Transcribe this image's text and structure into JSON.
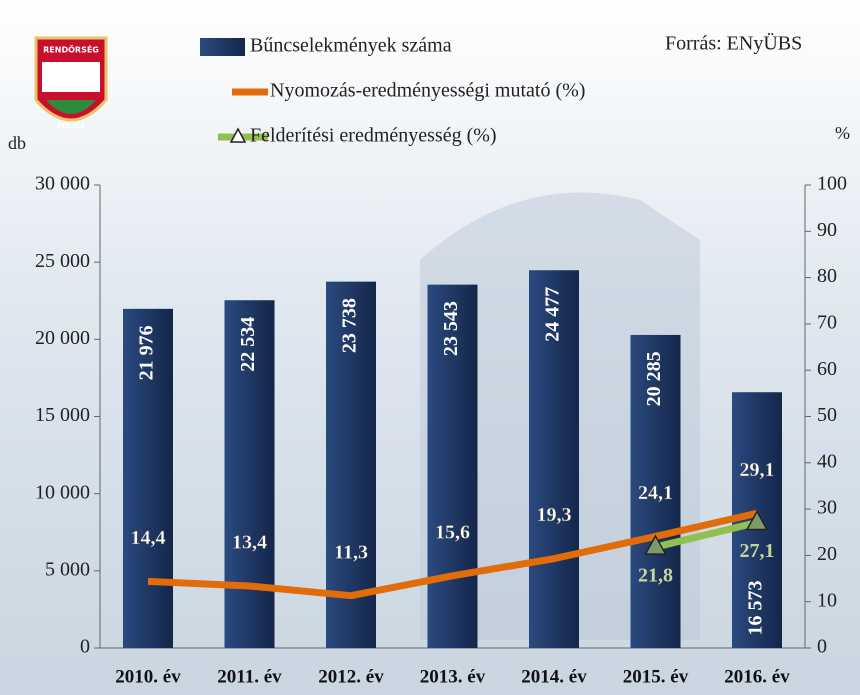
{
  "chart_data": {
    "type": "bar",
    "source": "Forrás: ENyÜBS",
    "logo_texts": [
      "RENDŐRSÉG",
      "POLICE"
    ],
    "y_label": "db",
    "y2_label": "%",
    "categories": [
      "2010. év",
      "2011. év",
      "2012. év",
      "2013. év",
      "2014. év",
      "2015. év",
      "2016. év"
    ],
    "series": [
      {
        "name": "Bűncselekmények száma",
        "type": "bar",
        "color": "#1f3864",
        "values": [
          21976,
          22534,
          23738,
          23543,
          24477,
          20285,
          16573
        ],
        "value_labels": [
          "21 976",
          "22 534",
          "23 738",
          "23 543",
          "24 477",
          "20 285",
          "16 573"
        ]
      },
      {
        "name": "Nyomozás-eredményességi mutató (%)",
        "type": "line",
        "axis": "y2",
        "color": "#e36c0a",
        "values": [
          14.4,
          13.4,
          11.3,
          15.6,
          19.3,
          24.1,
          29.1
        ],
        "value_labels": [
          "14,4",
          "13,4",
          "11,3",
          "15,6",
          "19,3",
          "24,1",
          "29,1"
        ]
      },
      {
        "name": "Felderítési eredményesség (%)",
        "type": "line",
        "axis": "y2",
        "color": "#92c050",
        "marker": "triangle",
        "values": [
          null,
          null,
          null,
          null,
          null,
          21.8,
          27.1
        ],
        "value_labels": [
          null,
          null,
          null,
          null,
          null,
          "21,8",
          "27,1"
        ]
      }
    ],
    "ylim": [
      0,
      30000
    ],
    "yticks": [
      0,
      {
        "value": 5000,
        "label": "5 000"
      },
      {
        "value": 10000,
        "label": "10 000"
      },
      {
        "value": 15000,
        "label": "15 000"
      },
      {
        "value": 20000,
        "label": "20 000"
      },
      {
        "value": 25000,
        "label": "25 000"
      },
      {
        "value": 30000,
        "label": "30 000"
      }
    ],
    "y2lim": [
      0,
      100
    ],
    "y2ticks": [
      0,
      10,
      20,
      30,
      40,
      50,
      60,
      70,
      80,
      90,
      100
    ]
  }
}
